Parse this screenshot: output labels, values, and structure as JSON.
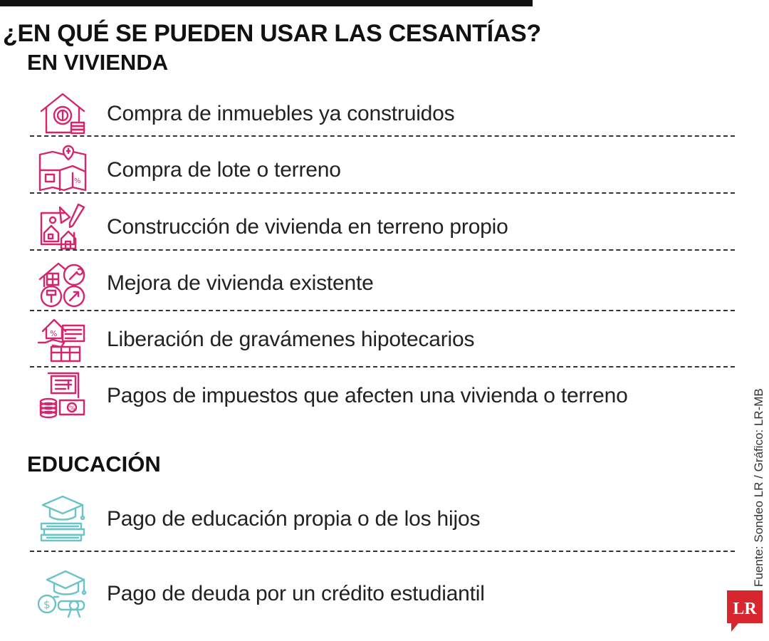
{
  "title": "¿EN QUÉ SE PUEDEN USAR LAS CESANTÍAS?",
  "sections": [
    {
      "heading": "EN VIVIENDA",
      "color": "#d6246e",
      "items": [
        {
          "label": "Compra de inmuebles ya construidos",
          "icon": "house-coin-icon"
        },
        {
          "label": "Compra de lote o terreno",
          "icon": "land-map-icon"
        },
        {
          "label": "Construcción de vivienda en terreno propio",
          "icon": "construction-blueprint-icon"
        },
        {
          "label": "Mejora de vivienda existente",
          "icon": "home-repair-tools-icon"
        },
        {
          "label": "Liberación de gravámenes hipotecarios",
          "icon": "mortgage-hand-icon"
        },
        {
          "label": "Pagos de impuestos que afecten una vivienda o terreno",
          "icon": "tax-document-coins-icon"
        }
      ]
    },
    {
      "heading": "EDUCACIÓN",
      "color": "#6cc3c7",
      "items": [
        {
          "label": "Pago de educación propia o de los hijos",
          "icon": "graduation-cap-books-icon"
        },
        {
          "label": "Pago de deuda por un crédito estudiantil",
          "icon": "graduation-cap-diploma-coin-icon"
        }
      ]
    }
  ],
  "source": "Fuente: Sondeo LR / Gráfico: LR-MB",
  "logo": {
    "text": "LR",
    "color": "#d7262d"
  }
}
